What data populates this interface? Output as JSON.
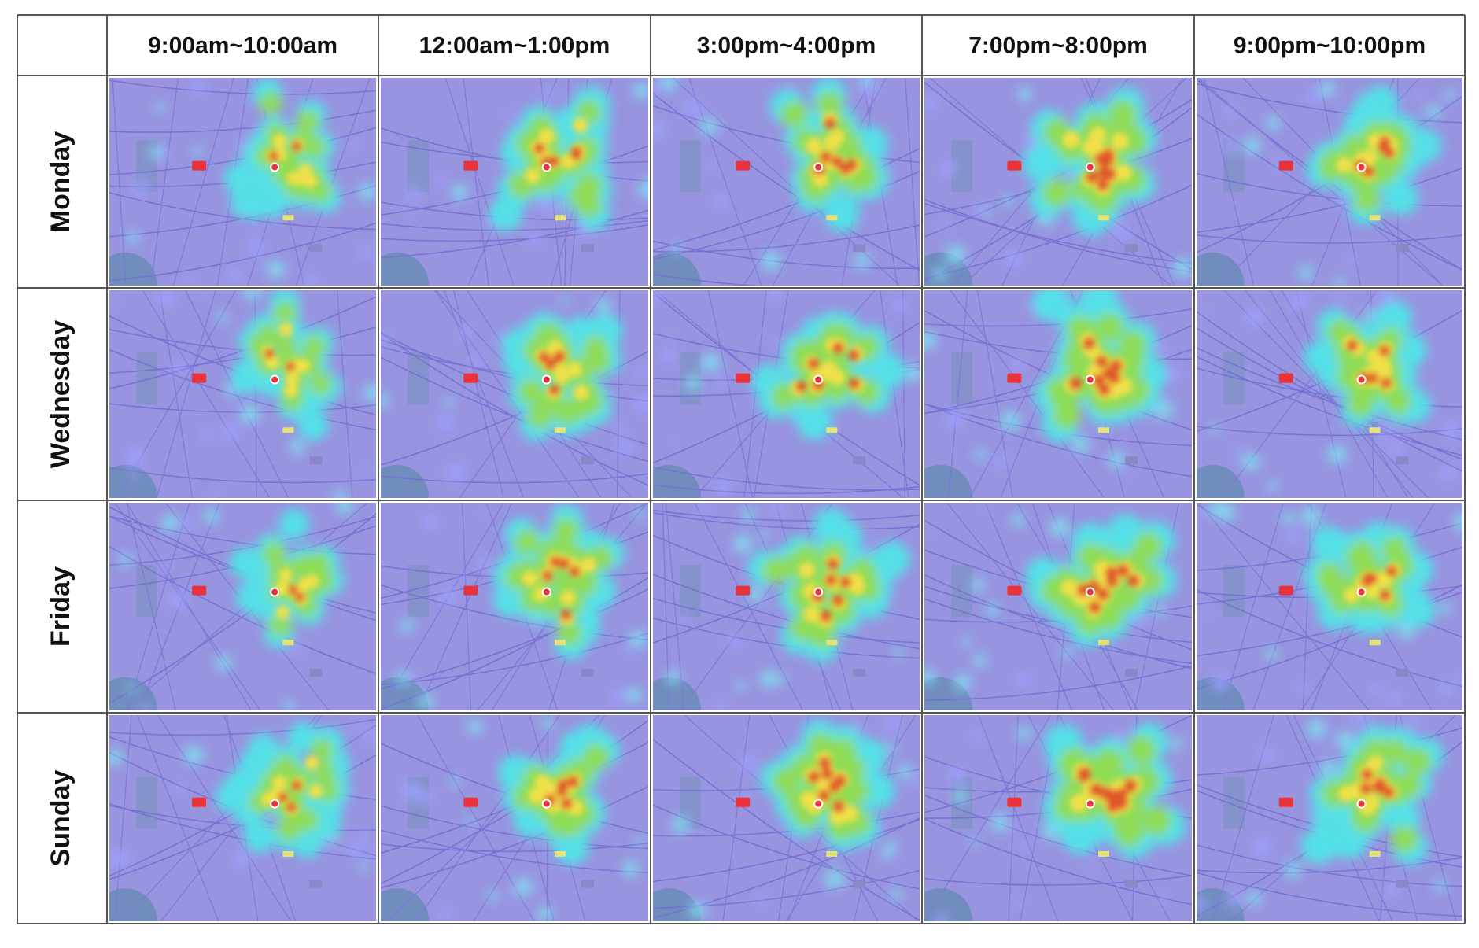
{
  "columns": [
    "9:00am~10:00am",
    "12:00am~1:00pm",
    "3:00pm~4:00pm",
    "7:00pm~8:00pm",
    "9:00pm~10:00pm"
  ],
  "rows": [
    "Monday",
    "Wednesday",
    "Friday",
    "Sunday"
  ]
}
